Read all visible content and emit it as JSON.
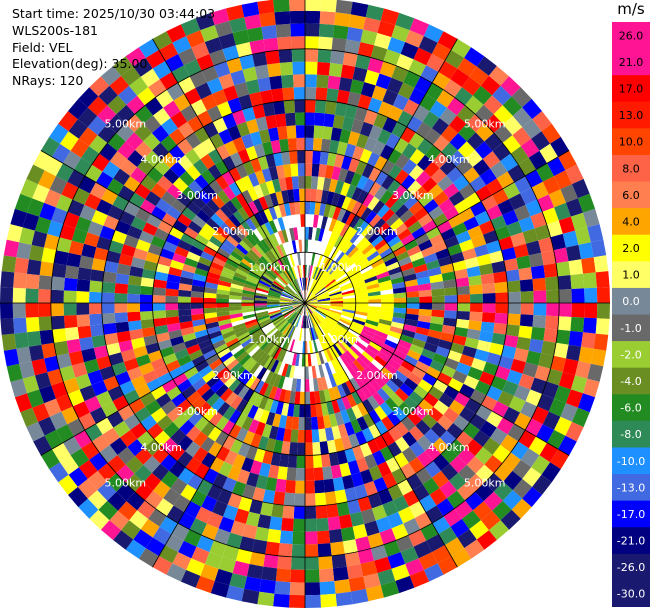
{
  "header": {
    "start_time": "Start time: 2025/10/30 03:44:03",
    "instrument": "WLS200s-181",
    "field": "Field: VEL",
    "elevation": "Elevation(deg): 35.00",
    "nrays": "NRays: 120"
  },
  "chart_data": {
    "type": "heatmap",
    "projection": "polar-ppi",
    "nrays": 120,
    "gates": 24,
    "range_max_km": 6.0,
    "range_rings_km": [
      1.0,
      2.0,
      3.0,
      4.0,
      5.0
    ],
    "range_labels": [
      "1.00km",
      "2.00km",
      "3.00km",
      "4.00km",
      "5.00km"
    ],
    "colorbar": {
      "unit": "m/s",
      "ticks": [
        "26.0",
        "21.0",
        "17.0",
        "13.0",
        "10.0",
        "8.0",
        "6.0",
        "4.0",
        "2.0",
        "1.0",
        "0.0",
        "-1.0",
        "-2.0",
        "-4.0",
        "-6.0",
        "-8.0",
        "-10.0",
        "-13.0",
        "-17.0",
        "-21.0",
        "-26.0",
        "-30.0"
      ],
      "colors": [
        "#ff1493",
        "#ff1493",
        "#ff0000",
        "#ff1a00",
        "#ff4500",
        "#ff6347",
        "#ff7f50",
        "#ffa500",
        "#ffff00",
        "#ffff66",
        "#778899",
        "#696969",
        "#9acd32",
        "#6b8e23",
        "#228b22",
        "#2e8b57",
        "#1e90ff",
        "#4169e1",
        "#0000ff",
        "#000080",
        "#191970",
        "#191970"
      ]
    },
    "near_field": {
      "west_sector": "negative (green, -2 to -8 m/s)",
      "east_sector": "positive (yellow, 2 to 4 m/s)",
      "southeast_patch": "pink, 21 to 26 m/s"
    }
  }
}
